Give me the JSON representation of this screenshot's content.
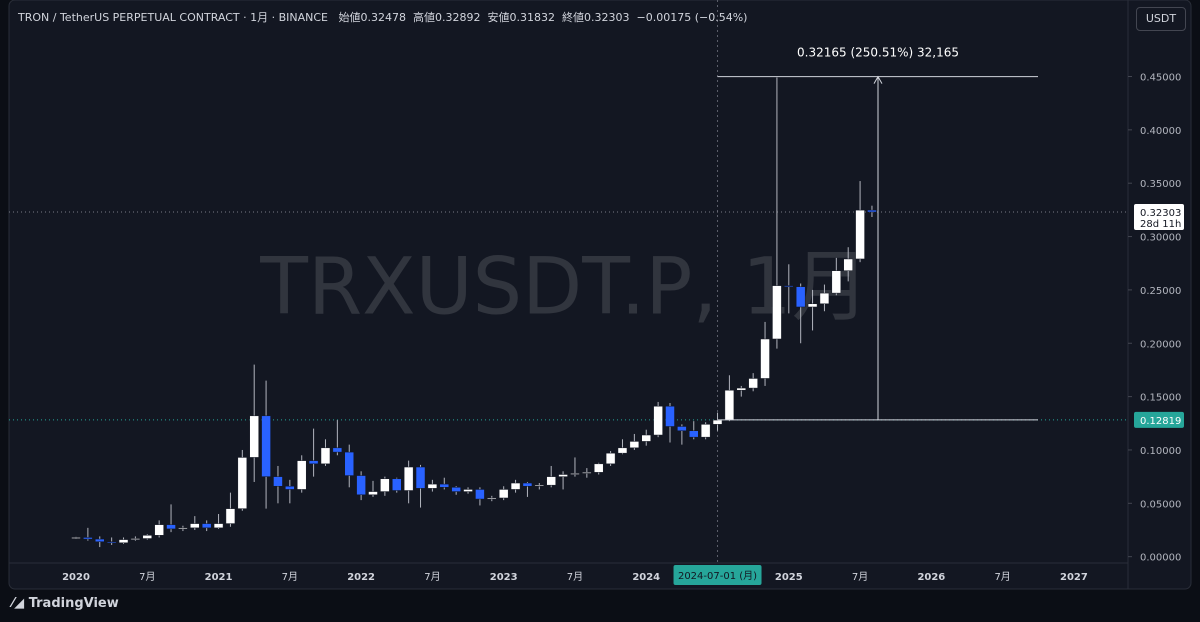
{
  "header": {
    "symbol": "TRON / TetherUS PERPETUAL CONTRACT · 1月 · BINANCE",
    "open_label": "始値",
    "high_label": "高値",
    "low_label": "安値",
    "close_label": "終値",
    "change": "−0.00175 (−0.54%)"
  },
  "currency_button": "USDT",
  "brand": "TradingView",
  "chart_data": {
    "type": "candlestick",
    "watermark": "TRXUSDT.P, 1月",
    "up_color": "#ffffff",
    "down_color": "#2962ff",
    "background": "#131722",
    "x": [
      "2020-01",
      "2020-02",
      "2020-03",
      "2020-04",
      "2020-05",
      "2020-06",
      "2020-07",
      "2020-08",
      "2020-09",
      "2020-10",
      "2020-11",
      "2020-12",
      "2021-01",
      "2021-02",
      "2021-03",
      "2021-04",
      "2021-05",
      "2021-06",
      "2021-07",
      "2021-08",
      "2021-09",
      "2021-10",
      "2021-11",
      "2021-12",
      "2022-01",
      "2022-02",
      "2022-03",
      "2022-04",
      "2022-05",
      "2022-06",
      "2022-07",
      "2022-08",
      "2022-09",
      "2022-10",
      "2022-11",
      "2022-12",
      "2023-01",
      "2023-02",
      "2023-03",
      "2023-04",
      "2023-05",
      "2023-06",
      "2023-07",
      "2023-08",
      "2023-09",
      "2023-10",
      "2023-11",
      "2023-12",
      "2024-01",
      "2024-02",
      "2024-03",
      "2024-04",
      "2024-05",
      "2024-06",
      "2024-07",
      "2024-08",
      "2024-09",
      "2024-10",
      "2024-11",
      "2024-12",
      "2025-01",
      "2025-02",
      "2025-03",
      "2025-04",
      "2025-05",
      "2025-06",
      "2025-07",
      "2025-08"
    ],
    "open": [
      0.017,
      0.018,
      0.0165,
      0.014,
      0.013,
      0.016,
      0.017,
      0.02,
      0.03,
      0.026,
      0.027,
      0.031,
      0.027,
      0.031,
      0.045,
      0.093,
      0.132,
      0.075,
      0.066,
      0.063,
      0.09,
      0.087,
      0.102,
      0.098,
      0.076,
      0.058,
      0.061,
      0.073,
      0.062,
      0.084,
      0.064,
      0.068,
      0.065,
      0.061,
      0.063,
      0.054,
      0.055,
      0.063,
      0.069,
      0.066,
      0.067,
      0.075,
      0.077,
      0.078,
      0.079,
      0.087,
      0.097,
      0.102,
      0.108,
      0.114,
      0.141,
      0.122,
      0.118,
      0.112,
      0.124,
      0.128,
      0.156,
      0.158,
      0.167,
      0.204,
      0.254,
      0.253,
      0.234,
      0.237,
      0.247,
      0.268,
      0.279,
      0.32478
    ],
    "high": [
      0.0185,
      0.027,
      0.019,
      0.018,
      0.018,
      0.019,
      0.021,
      0.034,
      0.049,
      0.029,
      0.038,
      0.034,
      0.04,
      0.06,
      0.1,
      0.18,
      0.165,
      0.085,
      0.072,
      0.095,
      0.12,
      0.11,
      0.128,
      0.105,
      0.08,
      0.071,
      0.075,
      0.074,
      0.09,
      0.086,
      0.072,
      0.074,
      0.066,
      0.065,
      0.065,
      0.057,
      0.066,
      0.072,
      0.07,
      0.069,
      0.085,
      0.08,
      0.093,
      0.083,
      0.088,
      0.099,
      0.11,
      0.115,
      0.119,
      0.145,
      0.144,
      0.124,
      0.127,
      0.126,
      0.135,
      0.17,
      0.16,
      0.172,
      0.22,
      0.449,
      0.274,
      0.256,
      0.25,
      0.255,
      0.28,
      0.29,
      0.352,
      0.32892
    ],
    "low": [
      0.0165,
      0.015,
      0.009,
      0.011,
      0.012,
      0.015,
      0.016,
      0.018,
      0.023,
      0.024,
      0.025,
      0.024,
      0.026,
      0.028,
      0.043,
      0.07,
      0.045,
      0.05,
      0.05,
      0.06,
      0.075,
      0.085,
      0.095,
      0.065,
      0.053,
      0.056,
      0.057,
      0.06,
      0.05,
      0.046,
      0.061,
      0.063,
      0.058,
      0.059,
      0.048,
      0.052,
      0.053,
      0.06,
      0.056,
      0.063,
      0.065,
      0.063,
      0.075,
      0.074,
      0.077,
      0.085,
      0.096,
      0.1,
      0.104,
      0.112,
      0.107,
      0.105,
      0.11,
      0.11,
      0.118,
      0.127,
      0.15,
      0.155,
      0.16,
      0.195,
      0.228,
      0.2,
      0.212,
      0.23,
      0.245,
      0.258,
      0.276,
      0.31832
    ],
    "close": [
      0.018,
      0.0165,
      0.014,
      0.013,
      0.016,
      0.017,
      0.02,
      0.03,
      0.026,
      0.027,
      0.031,
      0.027,
      0.031,
      0.045,
      0.093,
      0.132,
      0.075,
      0.066,
      0.063,
      0.09,
      0.087,
      0.102,
      0.098,
      0.076,
      0.058,
      0.061,
      0.073,
      0.062,
      0.084,
      0.064,
      0.068,
      0.065,
      0.061,
      0.063,
      0.054,
      0.055,
      0.063,
      0.069,
      0.066,
      0.067,
      0.075,
      0.077,
      0.078,
      0.079,
      0.087,
      0.097,
      0.102,
      0.108,
      0.114,
      0.141,
      0.122,
      0.118,
      0.112,
      0.124,
      0.128,
      0.156,
      0.158,
      0.167,
      0.204,
      0.254,
      0.253,
      0.234,
      0.237,
      0.247,
      0.268,
      0.279,
      0.32478,
      0.32303
    ],
    "ylim": [
      -0.005,
      0.517
    ],
    "yticks": [
      {
        "value": 0,
        "label": "0.00000"
      },
      {
        "value": 0.05,
        "label": "0.05000"
      },
      {
        "value": 0.1,
        "label": "0.10000"
      },
      {
        "value": 0.15,
        "label": "0.15000"
      },
      {
        "value": 0.2,
        "label": "0.20000"
      },
      {
        "value": 0.25,
        "label": "0.25000"
      },
      {
        "value": 0.3,
        "label": "0.30000"
      },
      {
        "value": 0.35,
        "label": "0.35000"
      },
      {
        "value": 0.4,
        "label": "0.40000"
      },
      {
        "value": 0.45,
        "label": "0.45000"
      }
    ],
    "xticks": [
      {
        "value": "2020-01",
        "label": "2020"
      },
      {
        "value": "2020-07",
        "label": "7月"
      },
      {
        "value": "2021-01",
        "label": "2021"
      },
      {
        "value": "2021-07",
        "label": "7月"
      },
      {
        "value": "2022-01",
        "label": "2022"
      },
      {
        "value": "2022-07",
        "label": "7月"
      },
      {
        "value": "2023-01",
        "label": "2023"
      },
      {
        "value": "2023-07",
        "label": "7月"
      },
      {
        "value": "2024-01",
        "label": "2024"
      },
      {
        "value": "2025-01",
        "label": "2025"
      },
      {
        "value": "2025-07",
        "label": "7月"
      },
      {
        "value": "2026-01",
        "label": "2026"
      },
      {
        "value": "2026-07",
        "label": "7月"
      },
      {
        "value": "2027-01",
        "label": "2027"
      }
    ],
    "crosshair": {
      "x": "2024-07",
      "x_label": "2024-07-01 (月)",
      "y": 0.12819
    },
    "countdown": "28d 11h",
    "measure": {
      "label": "0.32165 (250.51%) 32,165",
      "change": 0.32165
    }
  }
}
